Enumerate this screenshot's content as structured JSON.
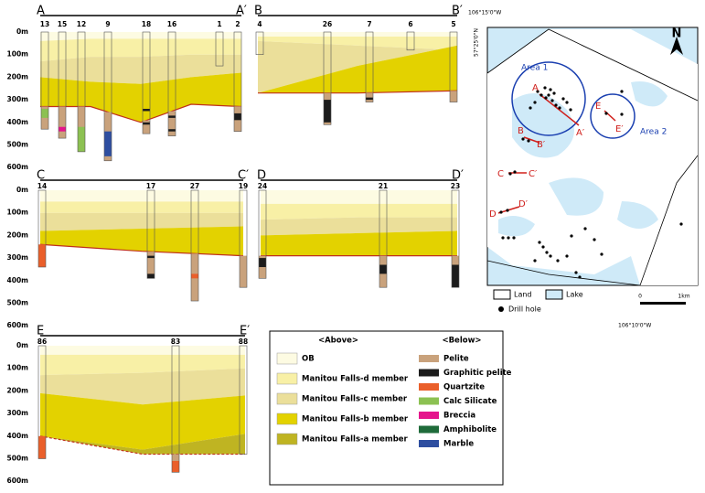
{
  "sections": [
    {
      "start": "A",
      "end": "A′",
      "holes": [
        "13",
        "15",
        "12",
        "9",
        "18",
        "16",
        "1",
        "2"
      ],
      "depths": [
        "0m",
        "100m",
        "200m",
        "300m",
        "400m",
        "500m",
        "600m"
      ]
    },
    {
      "start": "B",
      "end": "B′",
      "holes": [
        "4",
        "26",
        "7",
        "6",
        "5"
      ]
    },
    {
      "start": "C",
      "end": "C′",
      "holes": [
        "14",
        "17",
        "27",
        "19"
      ],
      "depths": [
        "0m",
        "100m",
        "200m",
        "300m",
        "400m",
        "500m",
        "600m"
      ]
    },
    {
      "start": "D",
      "end": "D′",
      "holes": [
        "24",
        "21",
        "23"
      ]
    },
    {
      "start": "E",
      "end": "E′",
      "holes": [
        "86",
        "83",
        "88"
      ],
      "depths": [
        "0m",
        "100m",
        "200m",
        "300m",
        "400m",
        "500m",
        "600m"
      ]
    }
  ],
  "legend": {
    "above_title": "<Above>",
    "above": [
      "OB",
      "Manitou Falls-d member",
      "Manitou Falls-c member",
      "Manitou Falls-b member",
      "Manitou Falls-a member"
    ],
    "below_title": "<Below>",
    "below": [
      "Pelite",
      "Graphitic pelite",
      "Quartzite",
      "Calc Silicate",
      "Breccia",
      "Amphibolite",
      "Marble"
    ]
  },
  "map": {
    "coords": [
      "106°15'0\"W",
      "57°25'0\"N",
      "106°10'0\"W"
    ],
    "north": "N",
    "areas": [
      "Area 1",
      "Area 2"
    ],
    "section_labels": [
      "A",
      "A′",
      "B",
      "B′",
      "C",
      "C′",
      "D",
      "D′",
      "E",
      "E′"
    ],
    "legend": [
      "Land",
      "Lake",
      "Drill hole"
    ],
    "scale": [
      "0",
      "1km"
    ]
  }
}
